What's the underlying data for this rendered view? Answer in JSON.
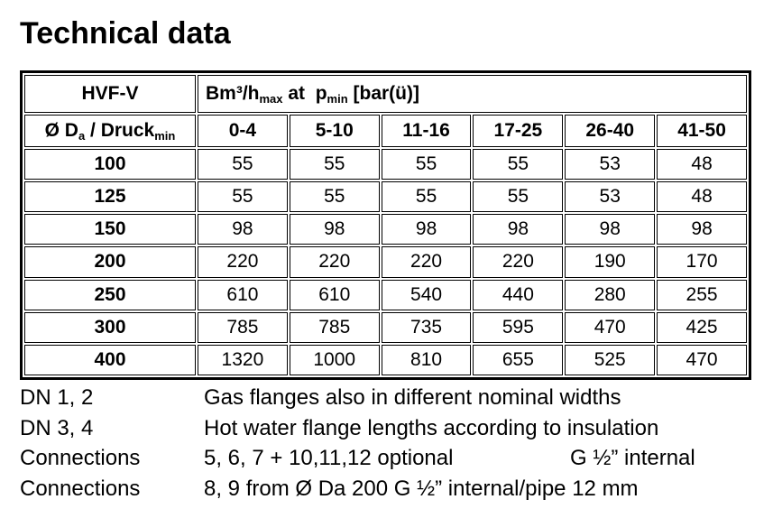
{
  "title": "Technical data",
  "table": {
    "header": {
      "model": "HVF-V",
      "group": [
        "Bm³/h",
        "max",
        " at  p",
        "min",
        " [bar(ü)]"
      ],
      "diameter": [
        "Ø D",
        "a",
        " / Druck",
        "min"
      ],
      "pressures": [
        "0-4",
        "5-10",
        "11-16",
        "17-25",
        "26-40",
        "41-50"
      ]
    },
    "rows": [
      [
        "100",
        "55",
        "55",
        "55",
        "55",
        "53",
        "48"
      ],
      [
        "125",
        "55",
        "55",
        "55",
        "55",
        "53",
        "48"
      ],
      [
        "150",
        "98",
        "98",
        "98",
        "98",
        "98",
        "98"
      ],
      [
        "200",
        "220",
        "220",
        "220",
        "220",
        "190",
        "170"
      ],
      [
        "250",
        "610",
        "610",
        "540",
        "440",
        "280",
        "255"
      ],
      [
        "300",
        "785",
        "785",
        "735",
        "595",
        "470",
        "425"
      ],
      [
        "400",
        "1320",
        "1000",
        "810",
        "655",
        "525",
        "470"
      ]
    ]
  },
  "notes": [
    {
      "label": "DN 1, 2",
      "text": "Gas flanges also in different nominal widths"
    },
    {
      "label": "DN 3, 4",
      "text": "Hot water flange lengths according to insulation"
    },
    {
      "label": "Connections",
      "text": "5, 6, 7 + 10,11,12 optional",
      "extra": "G ½” internal"
    },
    {
      "label": "Connections",
      "text": "8, 9 from Ø Da 200 G ½” internal/pipe 12 mm"
    }
  ]
}
